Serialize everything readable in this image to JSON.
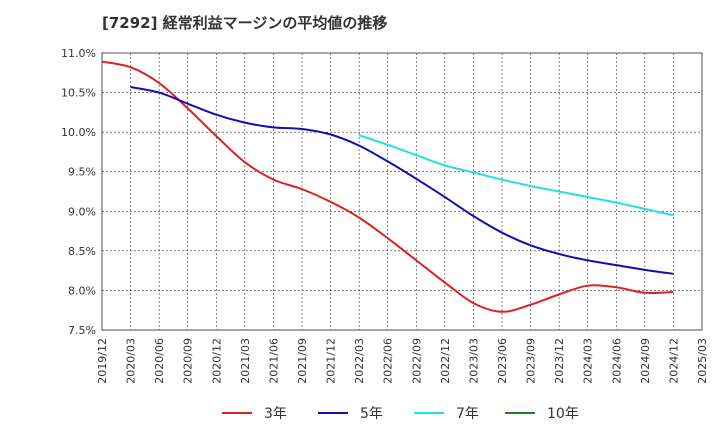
{
  "chart_data": {
    "type": "line",
    "title": "[7292]  経常利益マージンの平均値の推移",
    "xlabel": "",
    "ylabel": "",
    "x": [
      "2019/12",
      "2020/03",
      "2020/06",
      "2020/09",
      "2020/12",
      "2021/03",
      "2021/06",
      "2021/09",
      "2021/12",
      "2022/03",
      "2022/06",
      "2022/09",
      "2022/12",
      "2023/03",
      "2023/06",
      "2023/09",
      "2023/12",
      "2024/03",
      "2024/06",
      "2024/09",
      "2024/12",
      "2025/03"
    ],
    "ylim": [
      7.5,
      11.0
    ],
    "y_ticks": [
      "11.0%",
      "10.5%",
      "10.0%",
      "9.5%",
      "9.0%",
      "8.5%",
      "8.0%",
      "7.5%"
    ],
    "y_tick_values": [
      11.0,
      10.5,
      10.0,
      9.5,
      9.0,
      8.5,
      8.0,
      7.5
    ],
    "grid": true,
    "legend_position": "bottom",
    "series": [
      {
        "name": "3年",
        "color": "#e02020",
        "values": [
          10.89,
          10.82,
          10.62,
          10.3,
          9.95,
          9.62,
          9.4,
          9.28,
          9.12,
          8.92,
          8.66,
          8.38,
          8.1,
          7.84,
          7.73,
          7.82,
          7.95,
          8.06,
          8.04,
          7.97,
          7.98,
          null
        ]
      },
      {
        "name": "5年",
        "color": "#1010b0",
        "values": [
          null,
          10.57,
          10.5,
          10.36,
          10.22,
          10.12,
          10.06,
          10.04,
          9.97,
          9.83,
          9.63,
          9.41,
          9.18,
          8.94,
          8.73,
          8.57,
          8.46,
          8.38,
          8.32,
          8.26,
          8.21,
          null
        ]
      },
      {
        "name": "7年",
        "color": "#20e0f0",
        "values": [
          null,
          null,
          null,
          null,
          null,
          null,
          null,
          null,
          null,
          9.96,
          9.84,
          9.71,
          9.58,
          9.49,
          9.4,
          9.32,
          9.25,
          9.18,
          9.11,
          9.03,
          8.95,
          null
        ]
      },
      {
        "name": "10年",
        "color": "#208020",
        "values": [
          null,
          null,
          null,
          null,
          null,
          null,
          null,
          null,
          null,
          null,
          null,
          null,
          null,
          null,
          null,
          null,
          null,
          null,
          null,
          null,
          null,
          null
        ]
      }
    ]
  }
}
